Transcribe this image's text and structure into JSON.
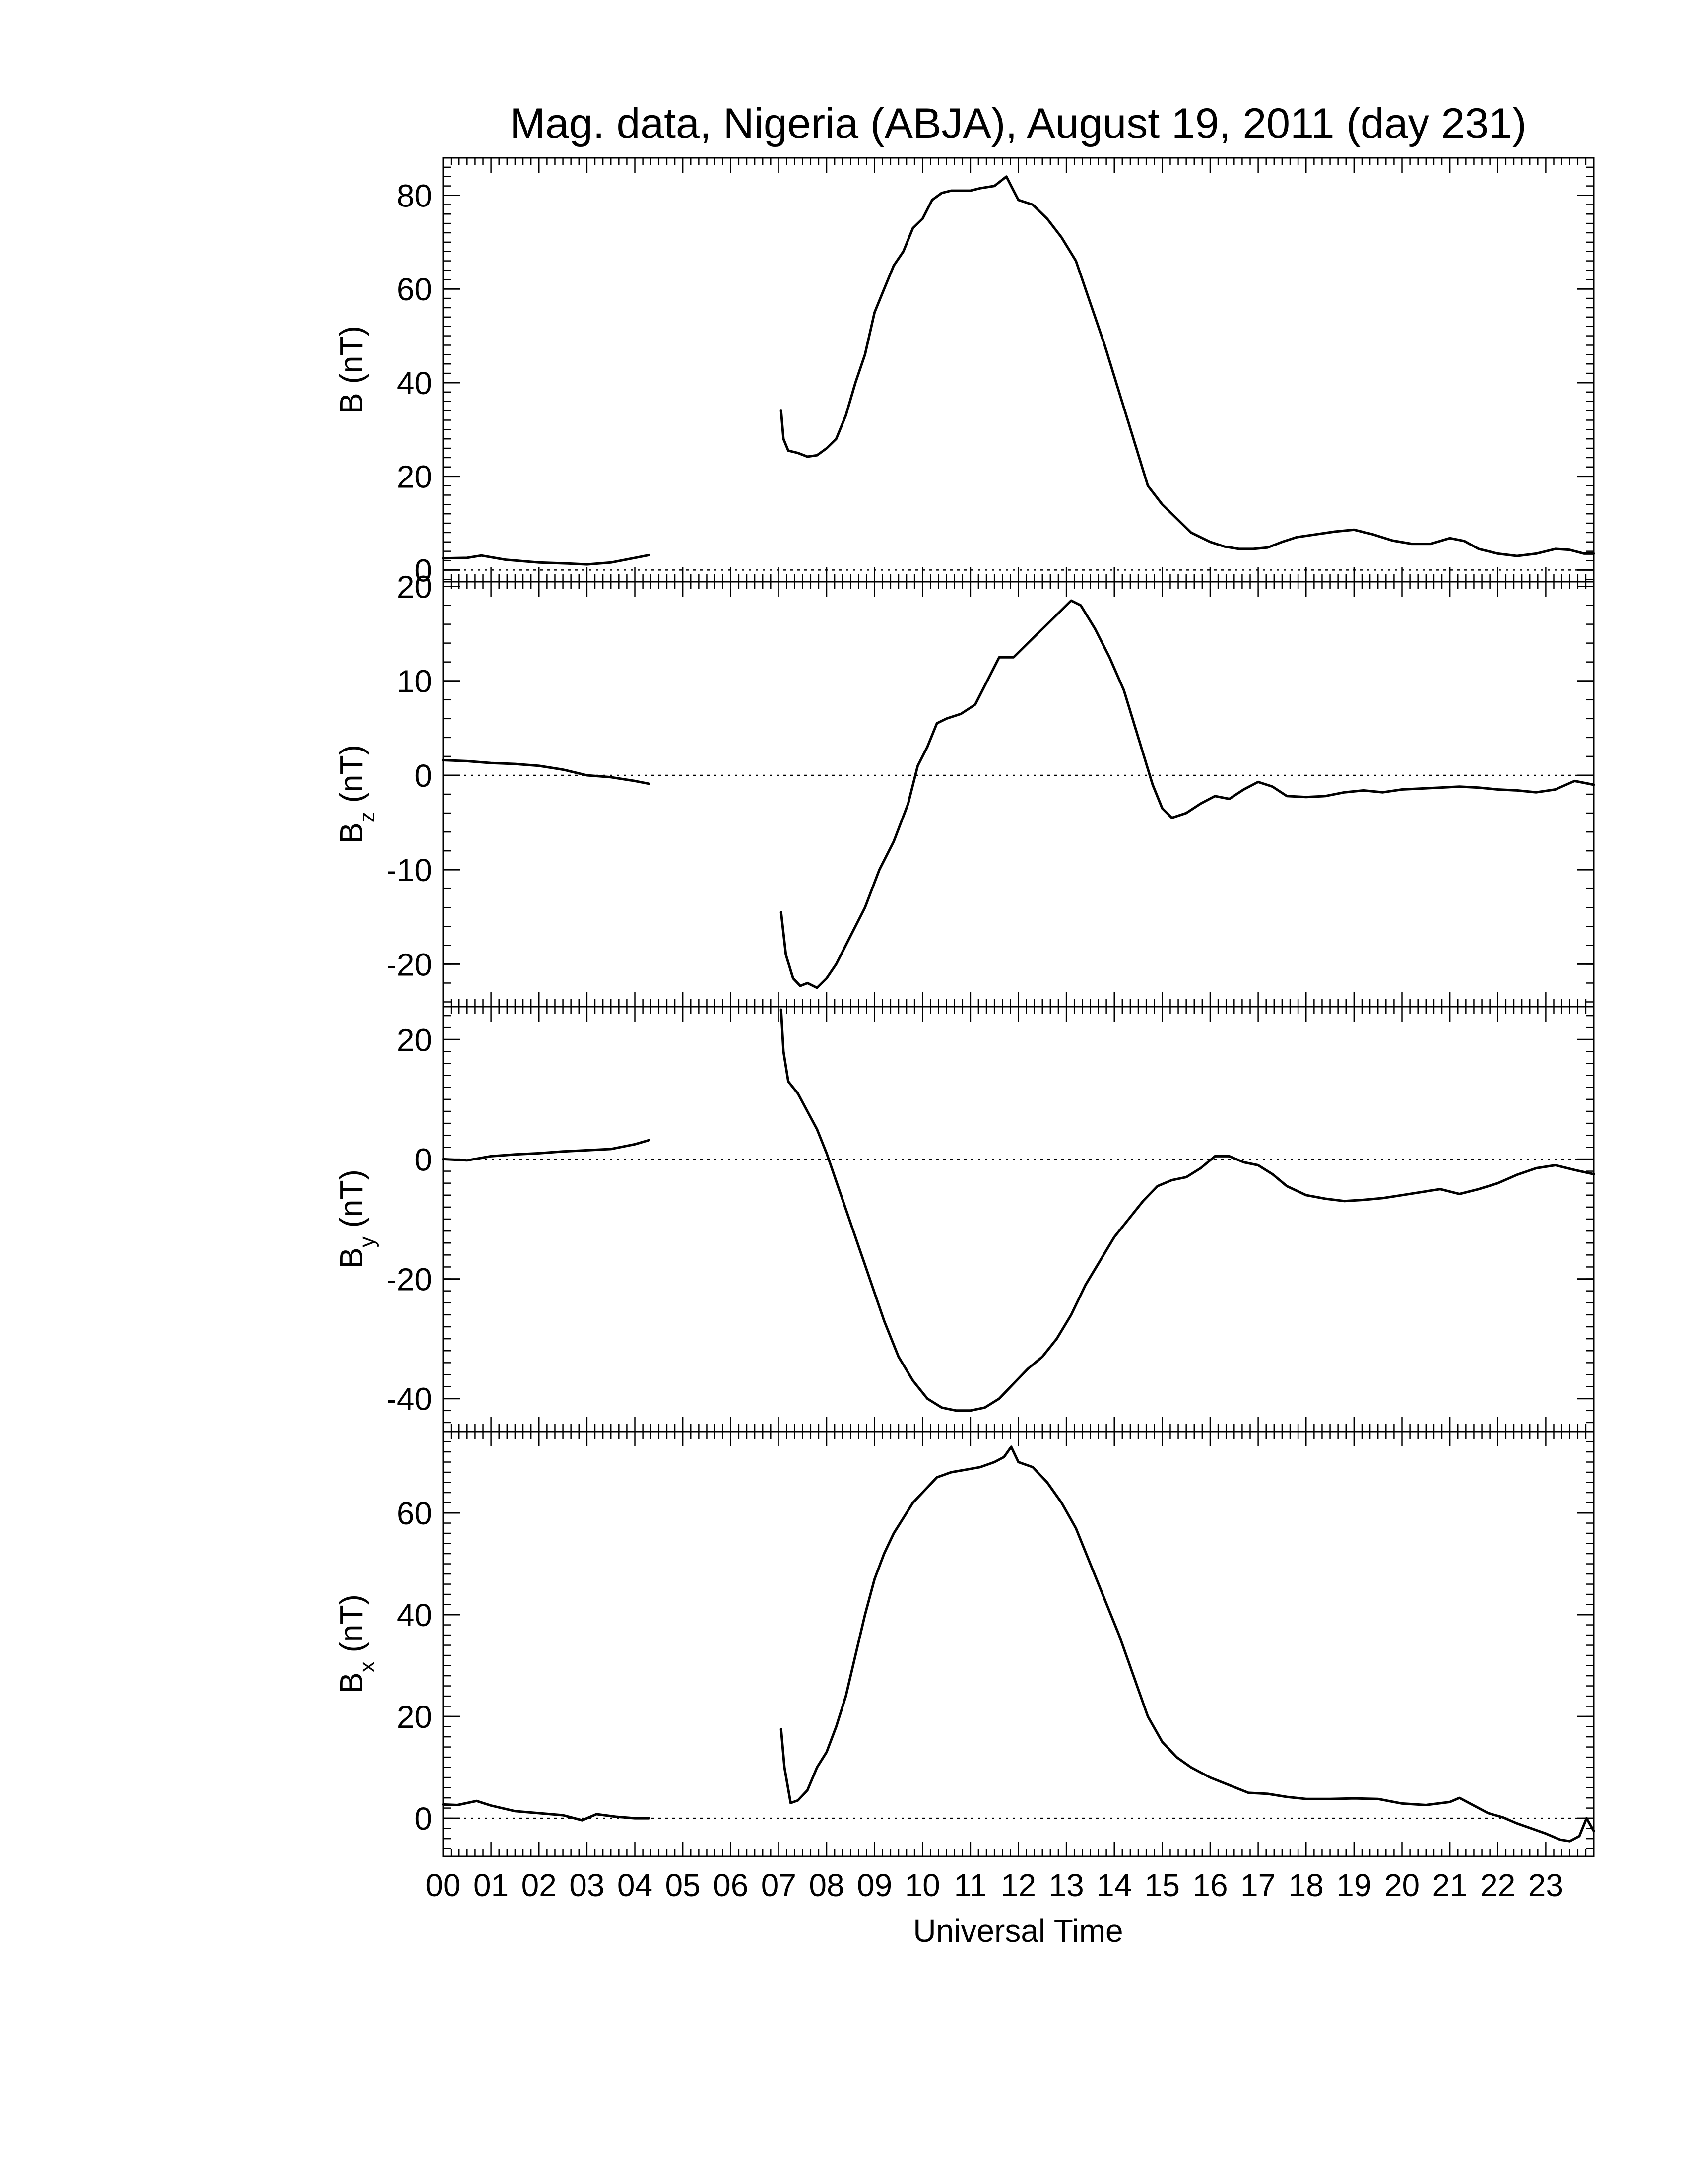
{
  "chart_data": {
    "type": "line",
    "title": "Mag. data, Nigeria (ABJA), August 19, 2011 (day 231)",
    "xlabel": "Universal Time",
    "x_unit": "hour UT",
    "xlim": [
      0,
      24
    ],
    "x_tick_labels": [
      "00",
      "01",
      "02",
      "03",
      "04",
      "05",
      "06",
      "07",
      "08",
      "09",
      "10",
      "11",
      "12",
      "13",
      "14",
      "15",
      "16",
      "17",
      "18",
      "19",
      "20",
      "21",
      "22",
      "23"
    ],
    "style": {
      "line_color": "#000000",
      "zero_line": "dotted",
      "grid": false
    },
    "panels": [
      {
        "name": "B",
        "ylabel_main": "B",
        "ylabel_sub": "",
        "ylabel_unit": "(nT)",
        "ylim": [
          -2.5,
          88
        ],
        "yticks": [
          0,
          20,
          40,
          60,
          80
        ],
        "ytick_labels": [
          "0",
          "20",
          "40",
          "60",
          "80"
        ],
        "segments": [
          {
            "x": [
              0.0,
              0.5,
              0.8,
              1.3,
              2.0,
              2.6,
              3.0,
              3.5,
              4.0,
              4.3
            ],
            "y": [
              2.5,
              2.6,
              3.1,
              2.2,
              1.6,
              1.4,
              1.2,
              1.6,
              2.6,
              3.2
            ]
          },
          {
            "x": [
              7.05,
              7.1,
              7.2,
              7.4,
              7.6,
              7.8,
              8.0,
              8.2,
              8.4,
              8.6,
              8.8,
              9.0,
              9.2,
              9.4,
              9.6,
              9.8,
              10.0,
              10.2,
              10.4,
              10.6,
              10.8,
              11.0,
              11.2,
              11.5,
              11.75,
              11.9,
              12.0,
              12.3,
              12.6,
              12.9,
              13.2,
              13.5,
              13.8,
              14.1,
              14.4,
              14.7,
              15.0,
              15.3,
              15.6,
              16.0,
              16.3,
              16.6,
              16.9,
              17.2,
              17.5,
              17.8,
              18.2,
              18.6,
              19.0,
              19.4,
              19.8,
              20.2,
              20.6,
              21.0,
              21.3,
              21.6,
              22.0,
              22.4,
              22.8,
              23.2,
              23.5,
              23.8,
              24.0
            ],
            "y": [
              34,
              28,
              25.5,
              25,
              24.2,
              24.5,
              26,
              28,
              33,
              40,
              46,
              55,
              60,
              65,
              68,
              73,
              75,
              79,
              80.5,
              81,
              81,
              81,
              81.5,
              82,
              84,
              81,
              79,
              78,
              75,
              71,
              66,
              57,
              48,
              38,
              28,
              18,
              14,
              11,
              8,
              6,
              5,
              4.5,
              4.5,
              4.8,
              6,
              7,
              7.6,
              8.2,
              8.6,
              7.6,
              6.3,
              5.6,
              5.6,
              6.8,
              6.2,
              4.5,
              3.5,
              3,
              3.5,
              4.5,
              4.3,
              3.5,
              3.5
            ]
          }
        ]
      },
      {
        "name": "Bz",
        "ylabel_main": "B",
        "ylabel_sub": "z",
        "ylabel_unit": "(nT)",
        "ylim": [
          -24.5,
          20.5
        ],
        "yticks": [
          -20,
          -10,
          0,
          10,
          20
        ],
        "ytick_labels": [
          "-20",
          "-10",
          "0",
          "10",
          "20"
        ],
        "segments": [
          {
            "x": [
              0.0,
              0.5,
              1.0,
              1.5,
              2.0,
              2.5,
              3.0,
              3.5,
              4.0,
              4.3
            ],
            "y": [
              1.6,
              1.5,
              1.3,
              1.2,
              1.0,
              0.6,
              0.0,
              -0.2,
              -0.6,
              -0.9
            ]
          },
          {
            "x": [
              7.05,
              7.15,
              7.3,
              7.45,
              7.6,
              7.8,
              8.0,
              8.2,
              8.5,
              8.8,
              9.1,
              9.4,
              9.7,
              9.9,
              10.1,
              10.3,
              10.5,
              10.8,
              11.1,
              11.4,
              11.6,
              11.9,
              12.2,
              12.5,
              12.8,
              13.1,
              13.3,
              13.6,
              13.9,
              14.2,
              14.5,
              14.8,
              15.0,
              15.2,
              15.5,
              15.8,
              16.1,
              16.4,
              16.7,
              17.0,
              17.3,
              17.6,
              18.0,
              18.4,
              18.8,
              19.2,
              19.6,
              20.0,
              20.4,
              20.8,
              21.2,
              21.6,
              22.0,
              22.4,
              22.8,
              23.2,
              23.6,
              24.0
            ],
            "y": [
              -14.5,
              -19,
              -21.5,
              -22.3,
              -22,
              -22.5,
              -21.5,
              -20,
              -17,
              -14,
              -10,
              -7,
              -3,
              1,
              3,
              5.5,
              6,
              6.5,
              7.5,
              10.5,
              12.5,
              12.5,
              14,
              15.5,
              17,
              18.5,
              18,
              15.5,
              12.5,
              9,
              4,
              -1,
              -3.5,
              -4.5,
              -4,
              -3,
              -2.2,
              -2.5,
              -1.5,
              -0.7,
              -1.2,
              -2.2,
              -2.3,
              -2.2,
              -1.8,
              -1.6,
              -1.8,
              -1.5,
              -1.4,
              -1.3,
              -1.2,
              -1.3,
              -1.5,
              -1.6,
              -1.8,
              -1.5,
              -0.6,
              -1.0
            ]
          }
        ]
      },
      {
        "name": "By",
        "ylabel_main": "B",
        "ylabel_sub": "y",
        "ylabel_unit": "(nT)",
        "ylim": [
          -45.5,
          25.5
        ],
        "yticks": [
          -40,
          -20,
          0,
          20
        ],
        "ytick_labels": [
          "-40",
          "-20",
          "0",
          "20"
        ],
        "segments": [
          {
            "x": [
              0.0,
              0.5,
              1.0,
              1.5,
              2.0,
              2.5,
              3.0,
              3.5,
              4.0,
              4.3
            ],
            "y": [
              0.0,
              -0.2,
              0.5,
              0.8,
              1.0,
              1.3,
              1.5,
              1.7,
              2.5,
              3.2
            ]
          },
          {
            "x": [
              7.05,
              7.1,
              7.2,
              7.4,
              7.6,
              7.8,
              8.0,
              8.3,
              8.6,
              8.9,
              9.2,
              9.5,
              9.8,
              10.1,
              10.4,
              10.7,
              11.0,
              11.3,
              11.6,
              11.9,
              12.2,
              12.5,
              12.8,
              13.1,
              13.4,
              13.7,
              14.0,
              14.3,
              14.6,
              14.9,
              15.2,
              15.5,
              15.8,
              16.1,
              16.4,
              16.7,
              17.0,
              17.3,
              17.6,
              18.0,
              18.4,
              18.8,
              19.2,
              19.6,
              20.0,
              20.4,
              20.8,
              21.2,
              21.6,
              22.0,
              22.4,
              22.8,
              23.2,
              23.6,
              24.0
            ],
            "y": [
              25,
              18,
              13,
              11,
              8,
              5,
              1,
              -6,
              -13,
              -20,
              -27,
              -33,
              -37,
              -40,
              -41.5,
              -42,
              -42,
              -41.5,
              -40,
              -37.5,
              -35,
              -33,
              -30,
              -26,
              -21,
              -17,
              -13,
              -10,
              -7,
              -4.5,
              -3.5,
              -3,
              -1.5,
              0.5,
              0.5,
              -0.5,
              -1,
              -2.5,
              -4.5,
              -6,
              -6.6,
              -7,
              -6.8,
              -6.5,
              -6,
              -5.5,
              -5,
              -5.8,
              -5,
              -4,
              -2.6,
              -1.5,
              -1,
              -1.8,
              -2.5
            ]
          }
        ]
      },
      {
        "name": "Bx",
        "ylabel_main": "B",
        "ylabel_sub": "x",
        "ylabel_unit": "(nT)",
        "ylim": [
          -7.5,
          76
        ],
        "yticks": [
          0,
          20,
          40,
          60
        ],
        "ytick_labels": [
          "0",
          "20",
          "40",
          "60"
        ],
        "segments": [
          {
            "x": [
              0.0,
              0.3,
              0.7,
              1.0,
              1.5,
              2.0,
              2.5,
              2.9,
              3.2,
              3.6,
              4.0,
              4.3
            ],
            "y": [
              2.7,
              2.6,
              3.4,
              2.5,
              1.4,
              1.0,
              0.6,
              -0.4,
              0.8,
              0.3,
              0.0,
              0.0
            ]
          },
          {
            "x": [
              7.05,
              7.12,
              7.25,
              7.4,
              7.6,
              7.8,
              8.0,
              8.2,
              8.4,
              8.6,
              8.8,
              9.0,
              9.2,
              9.4,
              9.6,
              9.8,
              10.0,
              10.3,
              10.6,
              10.9,
              11.2,
              11.5,
              11.7,
              11.85,
              12.0,
              12.3,
              12.6,
              12.9,
              13.2,
              13.5,
              13.8,
              14.1,
              14.4,
              14.7,
              15.0,
              15.3,
              15.6,
              16.0,
              16.4,
              16.8,
              17.2,
              17.6,
              18.0,
              18.5,
              19.0,
              19.5,
              20.0,
              20.5,
              21.0,
              21.2,
              21.5,
              21.8,
              22.1,
              22.4,
              22.7,
              23.0,
              23.3,
              23.5,
              23.7,
              23.85,
              24.0
            ],
            "y": [
              17.5,
              10,
              3,
              3.5,
              5.5,
              10,
              13,
              18,
              24,
              32,
              40,
              47,
              52,
              56,
              59,
              62,
              64,
              67,
              68,
              68.5,
              69,
              70,
              71,
              73,
              70,
              69,
              66,
              62,
              57,
              50,
              43,
              36,
              28,
              20,
              15,
              12,
              10,
              8,
              6.5,
              5,
              4.8,
              4.2,
              3.8,
              3.8,
              3.9,
              3.8,
              2.9,
              2.6,
              3.2,
              4,
              2.5,
              1,
              0.2,
              -1,
              -2,
              -3,
              -4.2,
              -4.5,
              -3.5,
              0,
              -2.5
            ]
          }
        ]
      }
    ]
  }
}
